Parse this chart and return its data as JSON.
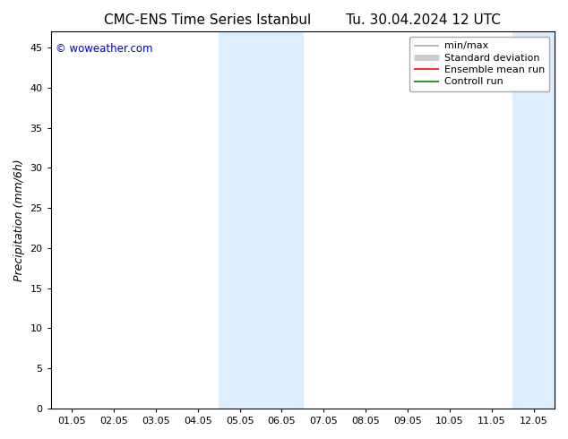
{
  "title_left": "CMC-ENS Time Series Istanbul",
  "title_right": "Tu. 30.04.2024 12 UTC",
  "ylabel": "Precipitation (mm/6h)",
  "background_color": "#ffffff",
  "plot_bg_color": "#ffffff",
  "ylim": [
    0,
    47
  ],
  "yticks": [
    0,
    5,
    10,
    15,
    20,
    25,
    30,
    35,
    40,
    45
  ],
  "xtick_labels": [
    "01.05",
    "02.05",
    "03.05",
    "04.05",
    "05.05",
    "06.05",
    "07.05",
    "08.05",
    "09.05",
    "10.05",
    "11.05",
    "12.05"
  ],
  "shaded_regions": [
    {
      "xmin": 3.5,
      "xmax": 5.5,
      "color": "#ddeeff"
    },
    {
      "xmin": 10.5,
      "xmax": 12.5,
      "color": "#ddeeff"
    }
  ],
  "watermark_text": "© woweather.com",
  "watermark_color": "#0000cc",
  "legend_items": [
    {
      "label": "min/max",
      "color": "#aaaaaa",
      "lw": 1.2,
      "style": "solid"
    },
    {
      "label": "Standard deviation",
      "color": "#cccccc",
      "lw": 5,
      "style": "solid"
    },
    {
      "label": "Ensemble mean run",
      "color": "#ff0000",
      "lw": 1.2,
      "style": "solid"
    },
    {
      "label": "Controll run",
      "color": "#008000",
      "lw": 1.2,
      "style": "solid"
    }
  ],
  "title_fontsize": 11,
  "tick_fontsize": 8,
  "ylabel_fontsize": 9,
  "watermark_fontsize": 8.5,
  "legend_fontsize": 8
}
